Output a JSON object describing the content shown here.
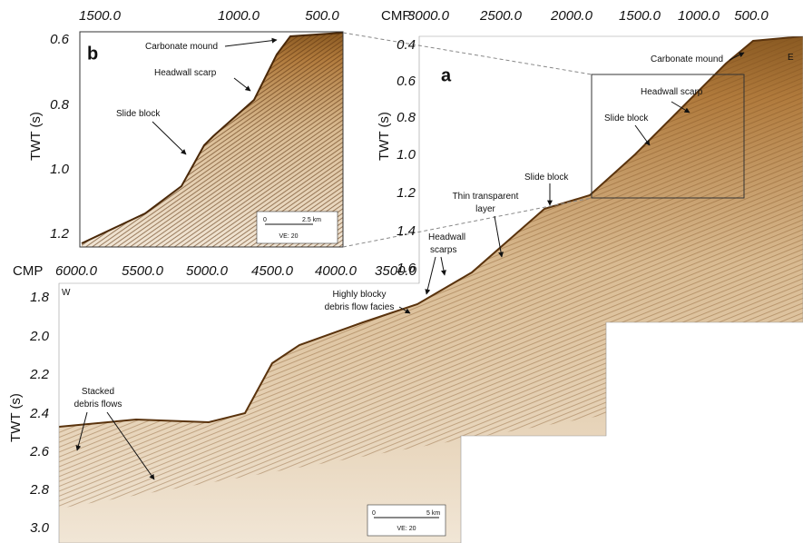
{
  "panel_b": {
    "label": "b",
    "x_ticks": [
      "1500.0",
      "1000.0",
      "500.0"
    ],
    "y_ticks": [
      "0.6",
      "0.8",
      "1.0",
      "1.2"
    ],
    "y_axis_label": "TWT (s)",
    "annotations": [
      "Carbonate mound",
      "Headwall scarp",
      "Slide block"
    ],
    "scale_bar": {
      "zero": "0",
      "length": "2.5 km",
      "ve": "VE: 20"
    }
  },
  "panel_a": {
    "label": "a",
    "x_axis_prefix": "CMP",
    "x_ticks": [
      "3000.0",
      "2500.0",
      "2000.0",
      "1500.0",
      "1000.0",
      "500.0"
    ],
    "y_ticks": [
      "0.4",
      "0.6",
      "0.8",
      "1.0",
      "1.2",
      "1.4",
      "1.6"
    ],
    "y_axis_label": "TWT (s)",
    "corner_label": "E",
    "annotations": [
      "Carbonate mound",
      "Headwall scarp",
      "Slide block",
      "Slide block"
    ]
  },
  "panel_a_lower": {
    "x_axis_prefix": "CMP",
    "x_ticks": [
      "6000.0",
      "5500.0",
      "5000.0",
      "4500.0",
      "4000.0",
      "3500.0"
    ],
    "y_ticks": [
      "1.8",
      "2.0",
      "2.2",
      "2.4",
      "2.6",
      "2.8",
      "3.0"
    ],
    "y_axis_label": "TWT (s)",
    "corner_label": "W",
    "annotations": [
      [
        "Highly blocky",
        "debris flow facies"
      ],
      [
        "Headwall",
        "scarps"
      ],
      [
        "Thin transparent",
        "layer"
      ],
      [
        "Stacked",
        "debris flows"
      ]
    ],
    "scale_bar": {
      "zero": "0",
      "length": "5 km",
      "ve": "VE: 20"
    }
  }
}
